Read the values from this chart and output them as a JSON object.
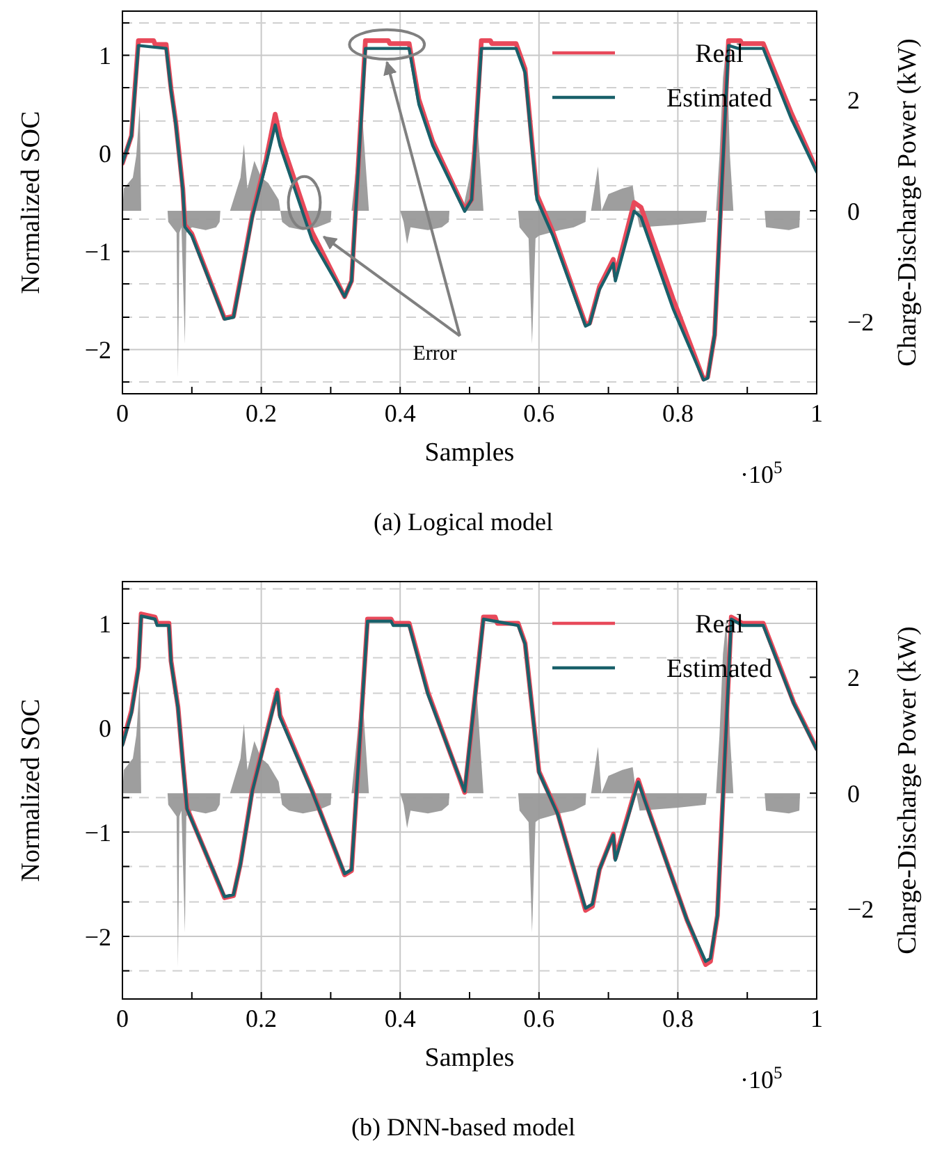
{
  "chart_data": [
    {
      "type": "line",
      "title": "(a) Logical model",
      "xlabel": "Samples",
      "ylabel": "Normalized SOC",
      "y2label": "Charge-Discharge Power (kW)",
      "xlim": [
        0,
        1
      ],
      "xticks": [
        0,
        {
          "value": 0.1,
          "label": null
        },
        0.2,
        {
          "value": 0.3,
          "label": null
        },
        0.4,
        {
          "value": 0.5,
          "label": null
        },
        0.6,
        {
          "value": 0.7,
          "label": null
        },
        0.8,
        {
          "value": 0.9,
          "label": null
        },
        1
      ],
      "ylim": [
        -2.45,
        1.45
      ],
      "yticks": [
        {
          "value": -2.33,
          "label": null
        },
        {
          "value": -2,
          "label": "−2"
        },
        {
          "value": -1.67,
          "label": null
        },
        {
          "value": -1.33,
          "label": null
        },
        {
          "value": -1,
          "label": "−1"
        },
        {
          "value": -0.67,
          "label": null
        },
        {
          "value": -0.33,
          "label": null
        },
        {
          "value": 0,
          "label": "0"
        },
        {
          "value": 0.33,
          "label": null
        },
        {
          "value": 0.67,
          "label": null
        },
        {
          "value": 1,
          "label": "1"
        },
        {
          "value": 1.33,
          "label": null
        }
      ],
      "y2lim": [
        -3.3,
        3.6
      ],
      "y2ticks": [
        {
          "value": -2,
          "label": "−2"
        },
        {
          "value": 0,
          "label": "0"
        },
        {
          "value": 2,
          "label": "2"
        }
      ],
      "grid": true,
      "legend": "top right",
      "annotations": [
        "·10$^{5}$",
        "Error"
      ],
      "series": [
        {
          "type": "area",
          "axis": "y2",
          "color": "#999999",
          "x": [
            0,
            0.002,
            0.015,
            0.02,
            0.025,
            0.027,
            0.03,
            0.065,
            0.066,
            0.075,
            0.078,
            0.08,
            0.082,
            0.085,
            0.09,
            0.092,
            0.1,
            0.12,
            0.135,
            0.14,
            0.141,
            0.155,
            0.16,
            0.17,
            0.175,
            0.18,
            0.19,
            0.2,
            0.21,
            0.22,
            0.225,
            0.23,
            0.24,
            0.26,
            0.28,
            0.3,
            0.301,
            0.33,
            0.335,
            0.345,
            0.355,
            0.4,
            0.405,
            0.41,
            0.415,
            0.44,
            0.46,
            0.47,
            0.471,
            0.49,
            0.5,
            0.51,
            0.52,
            0.57,
            0.572,
            0.585,
            0.59,
            0.595,
            0.6,
            0.63,
            0.65,
            0.667,
            0.668,
            0.675,
            0.68,
            0.685,
            0.69,
            0.7,
            0.72,
            0.735,
            0.74,
            0.745,
            0.8,
            0.84,
            0.842,
            0.855,
            0.86,
            0.865,
            0.87,
            0.875,
            0.88,
            0.925,
            0.927,
            0.96,
            0.975,
            0.976,
            1
          ],
          "values": [
            0,
            0.4,
            0.6,
            1.0,
            1.9,
            0,
            0,
            0,
            -0.2,
            -0.35,
            -0.4,
            -3.0,
            -0.4,
            -0.3,
            -2.4,
            -0.4,
            -0.3,
            -0.35,
            -0.3,
            -0.2,
            0,
            0,
            0.2,
            0.6,
            1.2,
            0.4,
            0.9,
            0.6,
            0.5,
            0.3,
            0.2,
            -0.2,
            -0.3,
            -0.35,
            -0.3,
            -0.2,
            0,
            0,
            0.6,
            1.8,
            0,
            0,
            -0.2,
            -0.6,
            -0.3,
            -0.35,
            -0.3,
            -0.2,
            0,
            0,
            0.6,
            1.8,
            0,
            0,
            -0.3,
            -0.5,
            -2.4,
            -0.5,
            -0.45,
            -0.35,
            -0.3,
            -0.2,
            0,
            0,
            0.4,
            0.8,
            0,
            0.3,
            0.4,
            0.45,
            0,
            -0.3,
            -0.25,
            -0.2,
            0,
            0,
            1.0,
            2.4,
            3.0,
            1.0,
            0,
            0,
            -0.3,
            -0.35,
            -0.3,
            0,
            0
          ]
        },
        {
          "type": "line",
          "name": "Real",
          "color": "#e8495a",
          "x": [
            0,
            0.013,
            0.023,
            0.045,
            0.047,
            0.063,
            0.07,
            0.077,
            0.087,
            0.09,
            0.1,
            0.147,
            0.16,
            0.17,
            0.187,
            0.207,
            0.22,
            0.227,
            0.273,
            0.32,
            0.33,
            0.35,
            0.383,
            0.385,
            0.413,
            0.427,
            0.447,
            0.493,
            0.503,
            0.517,
            0.53,
            0.532,
            0.567,
            0.58,
            0.597,
            0.62,
            0.667,
            0.673,
            0.687,
            0.707,
            0.71,
            0.737,
            0.747,
            0.793,
            0.837,
            0.843,
            0.853,
            0.873,
            0.89,
            0.892,
            0.923,
            0.963,
            1.0
          ],
          "values": [
            -0.1,
            0.18,
            1.15,
            1.15,
            1.11,
            1.11,
            0.66,
            0.31,
            -0.36,
            -0.73,
            -0.82,
            -1.68,
            -1.66,
            -1.28,
            -0.63,
            -0.06,
            0.4,
            0.17,
            -0.8,
            -1.46,
            -1.3,
            1.15,
            1.15,
            1.12,
            1.12,
            0.55,
            0.12,
            -0.57,
            -0.47,
            1.15,
            1.15,
            1.12,
            1.12,
            0.86,
            -0.42,
            -0.8,
            -1.74,
            -1.73,
            -1.36,
            -1.08,
            -1.25,
            -0.5,
            -0.55,
            -1.48,
            -2.3,
            -2.28,
            -1.85,
            1.15,
            1.15,
            1.12,
            1.12,
            0.42,
            -0.17
          ]
        },
        {
          "type": "line",
          "name": "Estimated",
          "color": "#19606a",
          "x": [
            0,
            0.013,
            0.023,
            0.063,
            0.07,
            0.077,
            0.087,
            0.09,
            0.1,
            0.147,
            0.16,
            0.17,
            0.187,
            0.207,
            0.22,
            0.227,
            0.273,
            0.32,
            0.33,
            0.35,
            0.413,
            0.427,
            0.447,
            0.493,
            0.503,
            0.517,
            0.567,
            0.58,
            0.597,
            0.62,
            0.667,
            0.673,
            0.687,
            0.707,
            0.71,
            0.737,
            0.747,
            0.793,
            0.837,
            0.843,
            0.853,
            0.873,
            0.887,
            0.923,
            0.963,
            1.0
          ],
          "values": [
            -0.1,
            0.18,
            1.1,
            1.07,
            0.64,
            0.29,
            -0.38,
            -0.75,
            -0.84,
            -1.69,
            -1.67,
            -1.3,
            -0.65,
            -0.1,
            0.29,
            0.08,
            -0.88,
            -1.46,
            -1.3,
            1.07,
            1.07,
            0.5,
            0.08,
            -0.59,
            -0.47,
            1.07,
            1.07,
            0.82,
            -0.47,
            -0.84,
            -1.76,
            -1.74,
            -1.39,
            -1.12,
            -1.3,
            -0.59,
            -0.65,
            -1.58,
            -2.31,
            -2.29,
            -1.85,
            1.1,
            1.07,
            1.07,
            0.36,
            -0.19
          ]
        }
      ]
    },
    {
      "type": "line",
      "title": "(b) DNN-based model",
      "xlabel": "Samples",
      "ylabel": "Normalized SOC",
      "y2label": "Charge-Discharge Power (kW)",
      "xlim": [
        0,
        1
      ],
      "xticks": [
        0,
        {
          "value": 0.1,
          "label": null
        },
        0.2,
        {
          "value": 0.3,
          "label": null
        },
        0.4,
        {
          "value": 0.5,
          "label": null
        },
        0.6,
        {
          "value": 0.7,
          "label": null
        },
        0.8,
        {
          "value": 0.9,
          "label": null
        },
        1
      ],
      "ylim": [
        -2.6,
        1.4
      ],
      "yticks": [
        {
          "value": -2.33,
          "label": null
        },
        {
          "value": -2,
          "label": "−2"
        },
        {
          "value": -1.67,
          "label": null
        },
        {
          "value": -1.33,
          "label": null
        },
        {
          "value": -1,
          "label": "−1"
        },
        {
          "value": -0.67,
          "label": null
        },
        {
          "value": -0.33,
          "label": null
        },
        {
          "value": 0,
          "label": "0"
        },
        {
          "value": 0.33,
          "label": null
        },
        {
          "value": 0.67,
          "label": null
        },
        {
          "value": 1,
          "label": "1"
        },
        {
          "value": 1.33,
          "label": null
        }
      ],
      "y2lim": [
        -3.55,
        3.65
      ],
      "y2ticks": [
        {
          "value": -2,
          "label": "−2"
        },
        {
          "value": 0,
          "label": "0"
        },
        {
          "value": 2,
          "label": "2"
        }
      ],
      "grid": true,
      "legend": "top right",
      "annotations": [
        "·10$^{5}$"
      ],
      "series": [
        {
          "type": "area",
          "axis": "y2",
          "color": "#999999",
          "x": [
            0,
            0.002,
            0.015,
            0.02,
            0.025,
            0.027,
            0.03,
            0.065,
            0.066,
            0.075,
            0.078,
            0.08,
            0.082,
            0.085,
            0.09,
            0.092,
            0.1,
            0.12,
            0.135,
            0.14,
            0.141,
            0.155,
            0.16,
            0.17,
            0.175,
            0.18,
            0.19,
            0.2,
            0.21,
            0.22,
            0.225,
            0.23,
            0.24,
            0.26,
            0.28,
            0.3,
            0.301,
            0.33,
            0.335,
            0.345,
            0.355,
            0.4,
            0.405,
            0.41,
            0.415,
            0.44,
            0.46,
            0.47,
            0.471,
            0.49,
            0.5,
            0.51,
            0.52,
            0.57,
            0.572,
            0.585,
            0.59,
            0.595,
            0.6,
            0.63,
            0.65,
            0.667,
            0.668,
            0.675,
            0.68,
            0.685,
            0.69,
            0.7,
            0.72,
            0.735,
            0.74,
            0.745,
            0.8,
            0.84,
            0.842,
            0.855,
            0.86,
            0.865,
            0.87,
            0.875,
            0.88,
            0.925,
            0.927,
            0.96,
            0.975,
            0.976,
            1
          ],
          "values": [
            0,
            0.4,
            0.6,
            1.0,
            1.9,
            0,
            0,
            0,
            -0.2,
            -0.35,
            -0.4,
            -3.0,
            -0.4,
            -0.3,
            -2.4,
            -0.4,
            -0.3,
            -0.35,
            -0.3,
            -0.2,
            0,
            0,
            0.2,
            0.6,
            1.2,
            0.4,
            0.9,
            0.6,
            0.5,
            0.3,
            0.2,
            -0.2,
            -0.3,
            -0.35,
            -0.3,
            -0.2,
            0,
            0,
            0.6,
            1.8,
            0,
            0,
            -0.2,
            -0.6,
            -0.3,
            -0.35,
            -0.3,
            -0.2,
            0,
            0,
            0.6,
            1.8,
            0,
            0,
            -0.3,
            -0.5,
            -2.4,
            -0.5,
            -0.45,
            -0.35,
            -0.3,
            -0.2,
            0,
            0,
            0.4,
            0.8,
            0,
            0.3,
            0.4,
            0.45,
            0,
            -0.3,
            -0.25,
            -0.2,
            0,
            0,
            1.0,
            2.4,
            3.0,
            1.0,
            0,
            0,
            -0.3,
            -0.35,
            -0.3,
            0,
            0
          ]
        },
        {
          "type": "line",
          "name": "Real",
          "color": "#e8495a",
          "x": [
            0,
            0.013,
            0.023,
            0.027,
            0.047,
            0.05,
            0.067,
            0.07,
            0.08,
            0.087,
            0.093,
            0.147,
            0.16,
            0.17,
            0.187,
            0.207,
            0.223,
            0.227,
            0.273,
            0.32,
            0.33,
            0.353,
            0.387,
            0.39,
            0.413,
            0.44,
            0.493,
            0.52,
            0.537,
            0.54,
            0.57,
            0.58,
            0.6,
            0.627,
            0.667,
            0.677,
            0.687,
            0.707,
            0.71,
            0.743,
            0.753,
            0.813,
            0.84,
            0.847,
            0.857,
            0.877,
            0.893,
            0.923,
            0.967,
            1.0
          ],
          "values": [
            -0.15,
            0.16,
            0.58,
            1.09,
            1.06,
            1.0,
            1.0,
            0.64,
            0.2,
            -0.33,
            -0.77,
            -1.63,
            -1.61,
            -1.3,
            -0.6,
            -0.07,
            0.36,
            0.12,
            -0.6,
            -1.41,
            -1.37,
            1.04,
            1.04,
            1.0,
            1.0,
            0.34,
            -0.62,
            1.06,
            1.06,
            1.0,
            1.0,
            0.81,
            -0.42,
            -0.82,
            -1.75,
            -1.71,
            -1.36,
            -1.02,
            -1.25,
            -0.5,
            -0.7,
            -1.84,
            -2.27,
            -2.24,
            -1.8,
            1.06,
            1.0,
            1.0,
            0.24,
            -0.2
          ]
        },
        {
          "type": "line",
          "name": "Estimated",
          "color": "#19606a",
          "x": [
            0,
            0.013,
            0.023,
            0.027,
            0.047,
            0.05,
            0.067,
            0.07,
            0.08,
            0.087,
            0.093,
            0.147,
            0.16,
            0.17,
            0.187,
            0.207,
            0.223,
            0.227,
            0.273,
            0.32,
            0.33,
            0.353,
            0.387,
            0.39,
            0.413,
            0.44,
            0.493,
            0.52,
            0.57,
            0.58,
            0.6,
            0.627,
            0.667,
            0.677,
            0.687,
            0.707,
            0.71,
            0.743,
            0.753,
            0.813,
            0.84,
            0.847,
            0.857,
            0.877,
            0.893,
            0.923,
            0.967,
            1.0
          ],
          "values": [
            -0.17,
            0.14,
            0.56,
            1.07,
            1.04,
            0.98,
            0.98,
            0.63,
            0.19,
            -0.34,
            -0.78,
            -1.62,
            -1.6,
            -1.31,
            -0.61,
            -0.08,
            0.34,
            0.1,
            -0.61,
            -1.4,
            -1.36,
            1.02,
            1.02,
            0.98,
            0.98,
            0.32,
            -0.61,
            1.04,
            0.98,
            0.8,
            -0.43,
            -0.83,
            -1.73,
            -1.69,
            -1.36,
            -1.03,
            -1.27,
            -0.52,
            -0.71,
            -1.84,
            -2.24,
            -2.21,
            -1.8,
            1.04,
            0.98,
            0.98,
            0.23,
            -0.21
          ]
        }
      ]
    }
  ]
}
